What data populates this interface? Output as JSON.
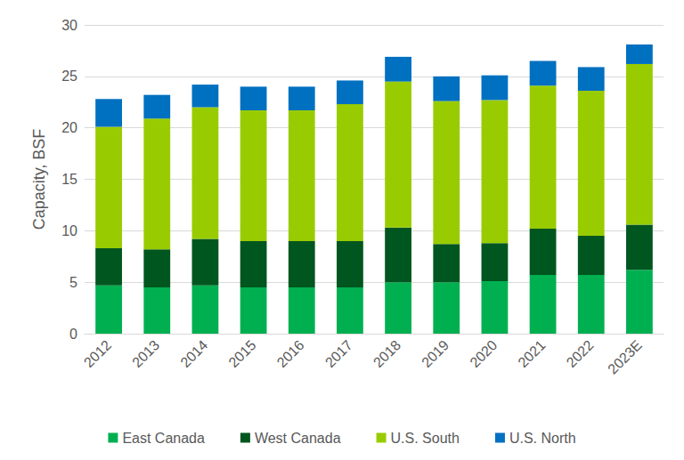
{
  "chart_data": {
    "type": "bar",
    "stacked": true,
    "grid": true,
    "legend": "bottom",
    "y_label": "Capacity, BSF",
    "categories": [
      "2012",
      "2013",
      "2014",
      "2015",
      "2016",
      "2017",
      "2018",
      "2019",
      "2020",
      "2021",
      "2022",
      "2023E"
    ],
    "ylim": [
      0,
      30
    ],
    "yticks": [
      0,
      5,
      10,
      15,
      20,
      25,
      30
    ],
    "series": [
      {
        "name": "East Canada",
        "color": "#00b050",
        "values": [
          4.7,
          4.5,
          4.7,
          4.5,
          4.5,
          4.5,
          5.0,
          5.0,
          5.1,
          5.7,
          5.7,
          6.2
        ]
      },
      {
        "name": "West Canada",
        "color": "#00561f",
        "values": [
          3.6,
          3.7,
          4.5,
          4.5,
          4.5,
          4.5,
          5.3,
          3.7,
          3.7,
          4.5,
          3.8,
          4.4
        ]
      },
      {
        "name": "U.S. South",
        "color": "#99cc00",
        "values": [
          11.8,
          12.7,
          12.8,
          12.7,
          12.7,
          13.3,
          14.2,
          13.9,
          13.9,
          13.9,
          14.1,
          15.6
        ]
      },
      {
        "name": "U.S. North",
        "color": "#0070c0",
        "values": [
          2.7,
          2.3,
          2.2,
          2.3,
          2.3,
          2.3,
          2.4,
          2.4,
          2.4,
          2.4,
          2.3,
          1.9
        ]
      }
    ]
  }
}
